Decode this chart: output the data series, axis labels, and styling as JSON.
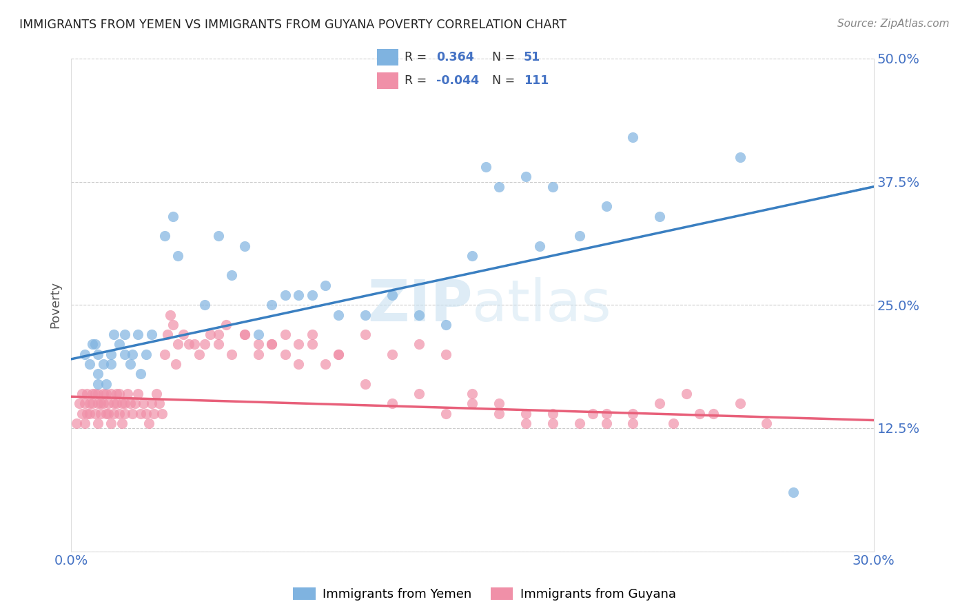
{
  "title": "IMMIGRANTS FROM YEMEN VS IMMIGRANTS FROM GUYANA POVERTY CORRELATION CHART",
  "source": "Source: ZipAtlas.com",
  "ylabel": "Poverty",
  "xlim": [
    0,
    0.3
  ],
  "ylim": [
    0,
    0.5
  ],
  "ytick_labels": [
    "",
    "12.5%",
    "25.0%",
    "37.5%",
    "50.0%"
  ],
  "xtick_labels": [
    "0.0%",
    "",
    "",
    "",
    "",
    "",
    "30.0%"
  ],
  "title_color": "#222222",
  "source_color": "#666666",
  "tick_color": "#4472c4",
  "grid_color": "#cccccc",
  "watermark": "ZIPatlas",
  "yemen_color": "#7fb3e0",
  "guyana_color": "#f090a8",
  "yemen_line_color": "#3a7fc1",
  "guyana_line_color": "#e8607a",
  "legend_R1": "0.364",
  "legend_N1": "51",
  "legend_R2": "-0.044",
  "legend_N2": "111",
  "legend_label1": "Immigrants from Yemen",
  "legend_label2": "Immigrants from Guyana",
  "yemen_scatter_x": [
    0.005,
    0.007,
    0.008,
    0.009,
    0.01,
    0.01,
    0.01,
    0.012,
    0.013,
    0.015,
    0.015,
    0.016,
    0.018,
    0.02,
    0.02,
    0.022,
    0.023,
    0.025,
    0.026,
    0.028,
    0.03,
    0.035,
    0.038,
    0.04,
    0.05,
    0.055,
    0.06,
    0.065,
    0.07,
    0.075,
    0.08,
    0.085,
    0.09,
    0.095,
    0.1,
    0.11,
    0.12,
    0.13,
    0.14,
    0.15,
    0.155,
    0.16,
    0.17,
    0.175,
    0.18,
    0.19,
    0.2,
    0.21,
    0.22,
    0.25,
    0.27
  ],
  "yemen_scatter_y": [
    0.2,
    0.19,
    0.21,
    0.21,
    0.2,
    0.18,
    0.17,
    0.19,
    0.17,
    0.2,
    0.19,
    0.22,
    0.21,
    0.2,
    0.22,
    0.19,
    0.2,
    0.22,
    0.18,
    0.2,
    0.22,
    0.32,
    0.34,
    0.3,
    0.25,
    0.32,
    0.28,
    0.31,
    0.22,
    0.25,
    0.26,
    0.26,
    0.26,
    0.27,
    0.24,
    0.24,
    0.26,
    0.24,
    0.23,
    0.3,
    0.39,
    0.37,
    0.38,
    0.31,
    0.37,
    0.32,
    0.35,
    0.42,
    0.34,
    0.4,
    0.06
  ],
  "guyana_scatter_x": [
    0.002,
    0.003,
    0.004,
    0.004,
    0.005,
    0.005,
    0.006,
    0.006,
    0.007,
    0.007,
    0.008,
    0.008,
    0.009,
    0.009,
    0.01,
    0.01,
    0.01,
    0.011,
    0.011,
    0.012,
    0.012,
    0.013,
    0.013,
    0.014,
    0.014,
    0.015,
    0.015,
    0.016,
    0.016,
    0.017,
    0.017,
    0.018,
    0.018,
    0.019,
    0.019,
    0.02,
    0.02,
    0.021,
    0.022,
    0.023,
    0.024,
    0.025,
    0.026,
    0.027,
    0.028,
    0.029,
    0.03,
    0.031,
    0.032,
    0.033,
    0.034,
    0.035,
    0.036,
    0.037,
    0.038,
    0.039,
    0.04,
    0.042,
    0.044,
    0.046,
    0.048,
    0.05,
    0.052,
    0.055,
    0.058,
    0.06,
    0.065,
    0.07,
    0.075,
    0.08,
    0.085,
    0.09,
    0.095,
    0.1,
    0.11,
    0.12,
    0.13,
    0.14,
    0.15,
    0.16,
    0.17,
    0.18,
    0.19,
    0.2,
    0.21,
    0.22,
    0.23,
    0.24,
    0.25,
    0.26,
    0.055,
    0.065,
    0.07,
    0.075,
    0.08,
    0.085,
    0.09,
    0.1,
    0.11,
    0.12,
    0.13,
    0.14,
    0.15,
    0.16,
    0.17,
    0.18,
    0.195,
    0.2,
    0.21,
    0.225,
    0.235
  ],
  "guyana_scatter_y": [
    0.13,
    0.15,
    0.14,
    0.16,
    0.15,
    0.13,
    0.14,
    0.16,
    0.15,
    0.14,
    0.16,
    0.15,
    0.14,
    0.16,
    0.15,
    0.13,
    0.16,
    0.15,
    0.14,
    0.16,
    0.15,
    0.14,
    0.16,
    0.15,
    0.14,
    0.13,
    0.16,
    0.15,
    0.14,
    0.16,
    0.15,
    0.14,
    0.16,
    0.15,
    0.13,
    0.15,
    0.14,
    0.16,
    0.15,
    0.14,
    0.15,
    0.16,
    0.14,
    0.15,
    0.14,
    0.13,
    0.15,
    0.14,
    0.16,
    0.15,
    0.14,
    0.2,
    0.22,
    0.24,
    0.23,
    0.19,
    0.21,
    0.22,
    0.21,
    0.21,
    0.2,
    0.21,
    0.22,
    0.22,
    0.23,
    0.2,
    0.22,
    0.21,
    0.21,
    0.2,
    0.21,
    0.22,
    0.19,
    0.2,
    0.17,
    0.15,
    0.16,
    0.14,
    0.15,
    0.14,
    0.13,
    0.14,
    0.13,
    0.14,
    0.13,
    0.15,
    0.16,
    0.14,
    0.15,
    0.13,
    0.21,
    0.22,
    0.2,
    0.21,
    0.22,
    0.19,
    0.21,
    0.2,
    0.22,
    0.2,
    0.21,
    0.2,
    0.16,
    0.15,
    0.14,
    0.13,
    0.14,
    0.13,
    0.14,
    0.13,
    0.14
  ]
}
